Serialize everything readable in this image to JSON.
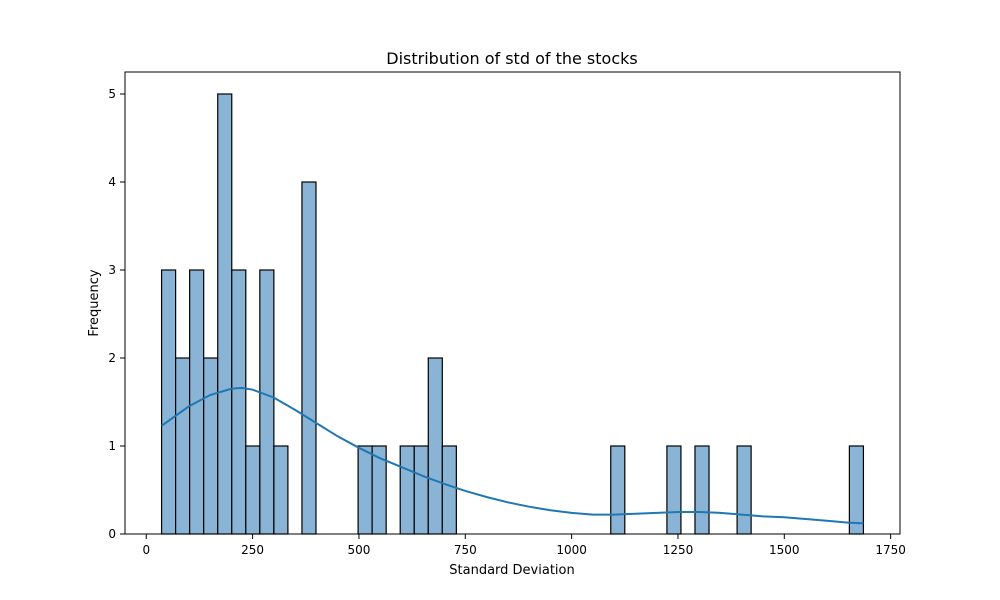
{
  "chart_data": {
    "type": "bar",
    "title": "Distribution of std of the stocks",
    "xlabel": "Standard Deviation",
    "ylabel": "Frequency",
    "xlim": [
      -50,
      1772
    ],
    "ylim": [
      0,
      5.25
    ],
    "grid": false,
    "xticks": [
      0,
      250,
      500,
      750,
      1000,
      1250,
      1500,
      1750
    ],
    "yticks": [
      0,
      1,
      2,
      3,
      4,
      5
    ],
    "bin_width": 33,
    "bars": [
      {
        "x0": 36,
        "x1": 69,
        "count": 3
      },
      {
        "x0": 69,
        "x1": 102,
        "count": 2
      },
      {
        "x0": 102,
        "x1": 135,
        "count": 3
      },
      {
        "x0": 135,
        "x1": 168,
        "count": 2
      },
      {
        "x0": 168,
        "x1": 201,
        "count": 5
      },
      {
        "x0": 201,
        "x1": 234,
        "count": 3
      },
      {
        "x0": 234,
        "x1": 267,
        "count": 1
      },
      {
        "x0": 267,
        "x1": 300,
        "count": 3
      },
      {
        "x0": 300,
        "x1": 333,
        "count": 1
      },
      {
        "x0": 366,
        "x1": 399,
        "count": 4
      },
      {
        "x0": 498,
        "x1": 531,
        "count": 1
      },
      {
        "x0": 531,
        "x1": 564,
        "count": 1
      },
      {
        "x0": 597,
        "x1": 630,
        "count": 1
      },
      {
        "x0": 630,
        "x1": 663,
        "count": 1
      },
      {
        "x0": 663,
        "x1": 696,
        "count": 2
      },
      {
        "x0": 696,
        "x1": 729,
        "count": 1
      },
      {
        "x0": 1092,
        "x1": 1125,
        "count": 1
      },
      {
        "x0": 1224,
        "x1": 1257,
        "count": 1
      },
      {
        "x0": 1290,
        "x1": 1323,
        "count": 1
      },
      {
        "x0": 1389,
        "x1": 1422,
        "count": 1
      },
      {
        "x0": 1653,
        "x1": 1686,
        "count": 1
      }
    ],
    "kde": {
      "x": [
        36,
        100,
        150,
        200,
        225,
        250,
        300,
        350,
        400,
        450,
        500,
        550,
        600,
        650,
        700,
        750,
        800,
        850,
        900,
        950,
        1000,
        1050,
        1100,
        1150,
        1200,
        1250,
        1300,
        1350,
        1400,
        1450,
        1500,
        1550,
        1600,
        1650,
        1686
      ],
      "y": [
        1.23,
        1.45,
        1.58,
        1.65,
        1.66,
        1.64,
        1.55,
        1.41,
        1.26,
        1.11,
        0.98,
        0.86,
        0.76,
        0.66,
        0.57,
        0.49,
        0.42,
        0.36,
        0.31,
        0.27,
        0.24,
        0.22,
        0.22,
        0.23,
        0.24,
        0.25,
        0.25,
        0.24,
        0.22,
        0.2,
        0.19,
        0.17,
        0.15,
        0.13,
        0.12
      ]
    },
    "colors": {
      "bar_fill": "#8ab4d6",
      "kde_line": "#1f77b4"
    }
  }
}
